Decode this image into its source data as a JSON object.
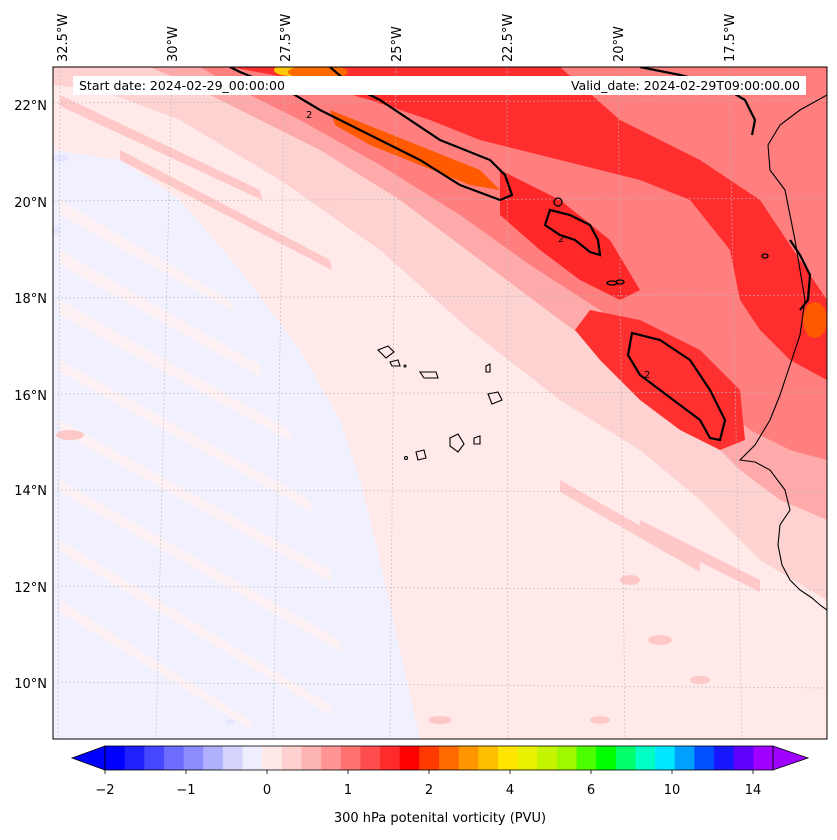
{
  "map": {
    "lon_labels": [
      "32.5°W",
      "30°W",
      "27.5°W",
      "25°W",
      "22.5°W",
      "20°W",
      "17.5°W"
    ],
    "lat_labels": [
      "22°N",
      "20°N",
      "18°N",
      "16°N",
      "14°N",
      "12°N",
      "10°N"
    ],
    "start_date": "Start date: 2024-02-29_00:00:00",
    "valid_date": "Valid_date: 2024-02-29T09:00:00.00",
    "contour_label": "2"
  },
  "colorbar": {
    "label": "300 hPa potenital vorticity (PVU)",
    "ticks": [
      "−2",
      "−1",
      "0",
      "1",
      "2",
      "4",
      "6",
      "10",
      "14"
    ],
    "colors": [
      "#0000ff",
      "#2020ff",
      "#4646ff",
      "#6c6cff",
      "#8c8cff",
      "#b0b0ff",
      "#d4d4ff",
      "#eeeeff",
      "#ffe8e8",
      "#ffd0d0",
      "#ffb4b4",
      "#ff9494",
      "#ff7070",
      "#ff4c4c",
      "#ff2a2a",
      "#ff0000",
      "#ff3a00",
      "#ff6a00",
      "#ff9600",
      "#ffbe00",
      "#ffe600",
      "#e6f000",
      "#c4f400",
      "#a0f800",
      "#4cff00",
      "#00ff00",
      "#00ff6a",
      "#00ffc4",
      "#00e8ff",
      "#00a0ff",
      "#0050ff",
      "#1818ff",
      "#6000ff",
      "#a000ff"
    ]
  },
  "colors": {
    "low_pv_blue": "#eeeeff",
    "background_pink": "#ffe8e8",
    "strong_red": "#ff1a1a",
    "orange": "#ff5a00"
  }
}
